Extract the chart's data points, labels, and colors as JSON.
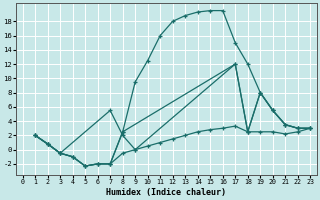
{
  "xlabel": "Humidex (Indice chaleur)",
  "bg_color": "#c8e8e8",
  "line_color": "#1a6e6a",
  "grid_color": "#ffffff",
  "xlim": [
    -0.5,
    23.5
  ],
  "ylim": [
    -3.5,
    20.5
  ],
  "xticks": [
    0,
    1,
    2,
    3,
    4,
    5,
    6,
    7,
    8,
    9,
    10,
    11,
    12,
    13,
    14,
    15,
    16,
    17,
    18,
    19,
    20,
    21,
    22,
    23
  ],
  "yticks": [
    -2,
    0,
    2,
    4,
    6,
    8,
    10,
    12,
    14,
    16,
    18
  ],
  "curve1_x": [
    1,
    2,
    3,
    4,
    5,
    6,
    7,
    8,
    9,
    10,
    11,
    12,
    13,
    14,
    15,
    16,
    17,
    18,
    19,
    20,
    21,
    22,
    23
  ],
  "curve1_y": [
    2,
    0.8,
    -0.5,
    -1,
    -2.3,
    -2,
    -2,
    2.5,
    9.5,
    12.5,
    16,
    18,
    18.8,
    19.3,
    19.5,
    19.5,
    15,
    12,
    8,
    5.5,
    3.5,
    3,
    3
  ],
  "curve2_x": [
    1,
    2,
    3,
    7,
    8,
    9,
    17,
    18,
    19,
    20,
    21,
    22,
    23
  ],
  "curve2_y": [
    2,
    0.8,
    -0.5,
    5.5,
    2,
    0,
    12,
    2.5,
    8,
    5.5,
    3.5,
    3,
    3
  ],
  "curve3_x": [
    1,
    2,
    3,
    4,
    5,
    6,
    7,
    8,
    17,
    18,
    19,
    20,
    21,
    22,
    23
  ],
  "curve3_y": [
    2,
    0.8,
    -0.5,
    -1,
    -2.3,
    -2,
    -2,
    2.5,
    12,
    2.5,
    8,
    5.5,
    3.5,
    3,
    3
  ],
  "curve4_x": [
    1,
    2,
    3,
    4,
    5,
    6,
    7,
    8,
    9,
    10,
    11,
    12,
    13,
    14,
    15,
    16,
    17,
    18,
    19,
    20,
    21,
    22,
    23
  ],
  "curve4_y": [
    2,
    0.8,
    -0.5,
    -1,
    -2.3,
    -2,
    -2,
    -0.5,
    0,
    0.5,
    1,
    1.5,
    2,
    2.5,
    2.8,
    3,
    3.3,
    2.5,
    2.5,
    2.5,
    2.2,
    2.5,
    3
  ]
}
